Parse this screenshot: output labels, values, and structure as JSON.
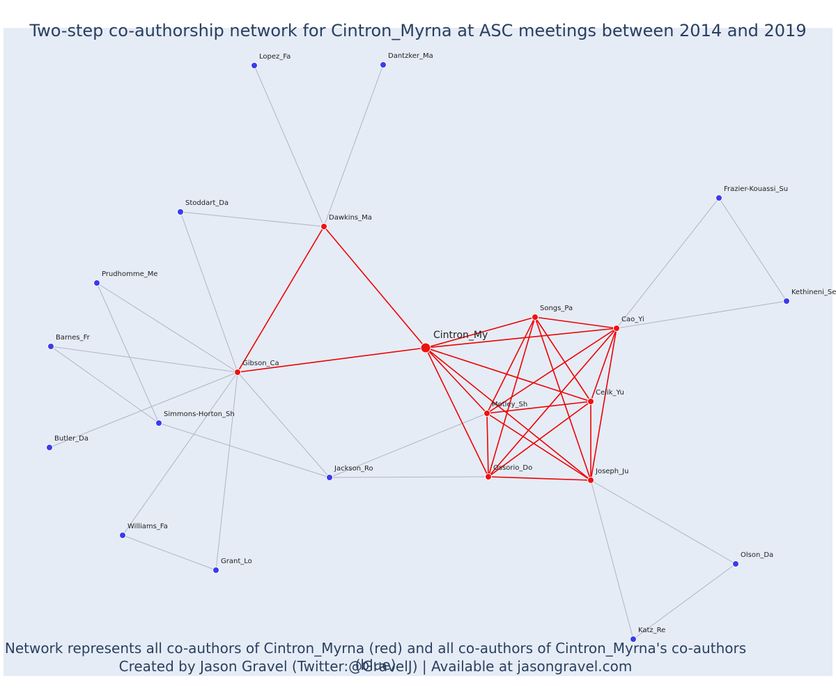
{
  "title": "Two-step co-authorship network for Cintron_Myrna at ASC meetings between 2014 and 2019",
  "caption": {
    "line1": "Network represents all co-authors of Cintron_Myrna (red) and all co-authors of Cintron_Myrna's co-authors (blue)",
    "line2": "Created by Jason Gravel (Twitter:@GravelJ) | Available at jasongravel.com"
  },
  "colors": {
    "background": "#e5ecf6",
    "first_step": "#ee1111",
    "second_step": "#3b3bee",
    "first_step_edge": "#ee0000",
    "second_step_edge": "#b0b4c4",
    "text": "#2a3f5f"
  },
  "chart_data": {
    "type": "network",
    "center": "Cintron_My",
    "nodes": [
      {
        "name": "Cintron_My",
        "group": "center"
      },
      {
        "name": "Songs_Pa",
        "group": "coauthor"
      },
      {
        "name": "Cao_Yi",
        "group": "coauthor"
      },
      {
        "name": "Celik_Yu",
        "group": "coauthor"
      },
      {
        "name": "Motley_Sh",
        "group": "coauthor"
      },
      {
        "name": "Ossorio_Do",
        "group": "coauthor"
      },
      {
        "name": "Joseph_Ju",
        "group": "coauthor"
      },
      {
        "name": "Gibson_Ca",
        "group": "coauthor"
      },
      {
        "name": "Dawkins_Ma",
        "group": "coauthor"
      },
      {
        "name": "Lopez_Fa",
        "group": "second"
      },
      {
        "name": "Dantzker_Ma",
        "group": "second"
      },
      {
        "name": "Stoddart_Da",
        "group": "second"
      },
      {
        "name": "Prudhomme_Me",
        "group": "second"
      },
      {
        "name": "Barnes_Fr",
        "group": "second"
      },
      {
        "name": "Simmons-Horton_Sh",
        "group": "second"
      },
      {
        "name": "Butler_Da",
        "group": "second"
      },
      {
        "name": "Jackson_Ro",
        "group": "second"
      },
      {
        "name": "Williams_Fa",
        "group": "second"
      },
      {
        "name": "Grant_Lo",
        "group": "second"
      },
      {
        "name": "Frazier-Kouassi_Su",
        "group": "second"
      },
      {
        "name": "Kethineni_Se",
        "group": "second"
      },
      {
        "name": "Olson_Da",
        "group": "second"
      },
      {
        "name": "Katz_Re",
        "group": "second"
      }
    ],
    "edges": [
      [
        "Cintron_My",
        "Dawkins_Ma"
      ],
      [
        "Cintron_My",
        "Gibson_Ca"
      ],
      [
        "Cintron_My",
        "Songs_Pa"
      ],
      [
        "Cintron_My",
        "Cao_Yi"
      ],
      [
        "Cintron_My",
        "Celik_Yu"
      ],
      [
        "Cintron_My",
        "Motley_Sh"
      ],
      [
        "Cintron_My",
        "Ossorio_Do"
      ],
      [
        "Cintron_My",
        "Joseph_Ju"
      ],
      [
        "Dawkins_Ma",
        "Gibson_Ca"
      ],
      [
        "Songs_Pa",
        "Cao_Yi"
      ],
      [
        "Songs_Pa",
        "Celik_Yu"
      ],
      [
        "Songs_Pa",
        "Motley_Sh"
      ],
      [
        "Songs_Pa",
        "Ossorio_Do"
      ],
      [
        "Songs_Pa",
        "Joseph_Ju"
      ],
      [
        "Cao_Yi",
        "Celik_Yu"
      ],
      [
        "Cao_Yi",
        "Motley_Sh"
      ],
      [
        "Cao_Yi",
        "Ossorio_Do"
      ],
      [
        "Cao_Yi",
        "Joseph_Ju"
      ],
      [
        "Celik_Yu",
        "Motley_Sh"
      ],
      [
        "Celik_Yu",
        "Ossorio_Do"
      ],
      [
        "Celik_Yu",
        "Joseph_Ju"
      ],
      [
        "Motley_Sh",
        "Ossorio_Do"
      ],
      [
        "Motley_Sh",
        "Joseph_Ju"
      ],
      [
        "Ossorio_Do",
        "Joseph_Ju"
      ],
      [
        "Dawkins_Ma",
        "Lopez_Fa"
      ],
      [
        "Dawkins_Ma",
        "Dantzker_Ma"
      ],
      [
        "Dawkins_Ma",
        "Stoddart_Da"
      ],
      [
        "Gibson_Ca",
        "Stoddart_Da"
      ],
      [
        "Gibson_Ca",
        "Prudhomme_Me"
      ],
      [
        "Gibson_Ca",
        "Barnes_Fr"
      ],
      [
        "Gibson_Ca",
        "Butler_Da"
      ],
      [
        "Gibson_Ca",
        "Jackson_Ro"
      ],
      [
        "Gibson_Ca",
        "Williams_Fa"
      ],
      [
        "Gibson_Ca",
        "Grant_Lo"
      ],
      [
        "Prudhomme_Me",
        "Simmons-Horton_Sh"
      ],
      [
        "Barnes_Fr",
        "Simmons-Horton_Sh"
      ],
      [
        "Simmons-Horton_Sh",
        "Jackson_Ro"
      ],
      [
        "Williams_Fa",
        "Grant_Lo"
      ],
      [
        "Jackson_Ro",
        "Ossorio_Do"
      ],
      [
        "Motley_Sh",
        "Jackson_Ro"
      ],
      [
        "Cao_Yi",
        "Frazier-Kouassi_Su"
      ],
      [
        "Cao_Yi",
        "Kethineni_Se"
      ],
      [
        "Frazier-Kouassi_Su",
        "Kethineni_Se"
      ],
      [
        "Joseph_Ju",
        "Olson_Da"
      ],
      [
        "Joseph_Ju",
        "Katz_Re"
      ],
      [
        "Olson_Da",
        "Katz_Re"
      ]
    ]
  }
}
